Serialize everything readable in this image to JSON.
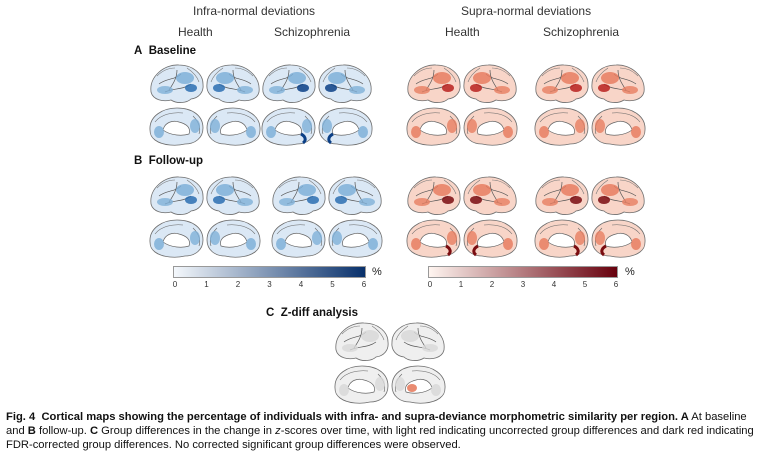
{
  "column_groups": {
    "infra": "Infra-normal deviations",
    "supra": "Supra-normal deviations"
  },
  "columns": {
    "infra_health": "Health",
    "infra_scz": "Schizophrenia",
    "supra_health": "Health",
    "supra_scz": "Schizophrenia"
  },
  "sections": {
    "a_letter": "A",
    "a_title": "Baseline",
    "b_letter": "B",
    "b_title": "Follow-up",
    "c_letter": "C",
    "c_title": "Z-diff analysis"
  },
  "colorbars": {
    "blue": {
      "unit": "%",
      "ticks": [
        "0",
        "1",
        "2",
        "3",
        "4",
        "5",
        "6"
      ],
      "colors": [
        "#f4f8fc",
        "#08306b"
      ]
    },
    "red": {
      "unit": "%",
      "ticks": [
        "0",
        "1",
        "2",
        "3",
        "4",
        "5",
        "6"
      ],
      "colors": [
        "#fff5f0",
        "#67000d"
      ]
    }
  },
  "caption": {
    "fig_label": "Fig. 4",
    "title": "Cortical maps showing the percentage of individuals with infra- and supra-deviance morphometric similarity per region.",
    "a_letter": "A",
    "text_1": " At baseline and ",
    "b_letter": "B",
    "text_2": " follow-up. ",
    "c_letter": "C",
    "text_3": " Group differences in the change in ",
    "z_var": "z",
    "text_4": "-scores over time, with light red indicating uncorrected group differences and dark red indicating FDR-corrected group differences. No corrected significant group differences were observed."
  },
  "brain_colors": {
    "blue_light": "#dbe8f5",
    "blue_mid": "#7fb0d8",
    "blue_dark": "#2c6fb1",
    "blue_deep": "#0b3f86",
    "red_light": "#f8d5c8",
    "red_mid": "#e77e62",
    "red_dark": "#b8211f",
    "red_deep": "#7a0c10",
    "gray": "#d8d8d8",
    "gray_dark": "#9a9a9a"
  }
}
